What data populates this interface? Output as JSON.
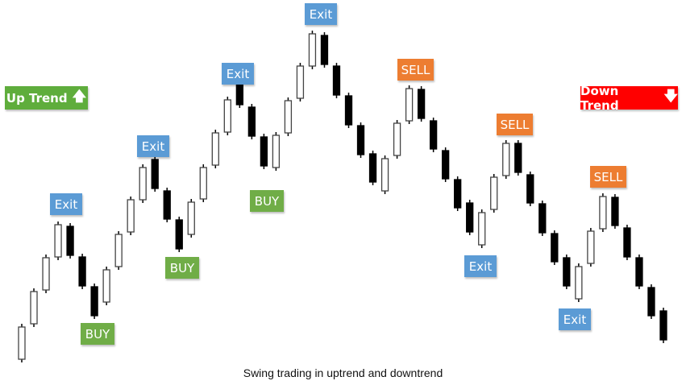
{
  "caption": "Swing trading in uptrend and downtrend",
  "trend_labels": {
    "up": {
      "label": "Up Trend",
      "icon": "arrow-up-icon",
      "color": "#5fad3c"
    },
    "down": {
      "label": "Down Trend",
      "icon": "arrow-down-icon",
      "color": "#ff0000"
    }
  },
  "signal_colors": {
    "Exit": "#5b9bd5",
    "BUY": "#70ad47",
    "SELL": "#ed7d31"
  },
  "signals": [
    "Exit",
    "BUY",
    "Exit",
    "BUY",
    "Exit",
    "BUY",
    "Exit",
    "SELL",
    "SELL",
    "Exit",
    "SELL",
    "Exit"
  ],
  "chart_data": {
    "type": "candlestick",
    "candles": [
      [
        14,
        54
      ],
      [
        58,
        98
      ],
      [
        100,
        140
      ],
      [
        141,
        181
      ],
      [
        179,
        143
      ],
      [
        141,
        105
      ],
      [
        104,
        68
      ],
      [
        85,
        125
      ],
      [
        129,
        169
      ],
      [
        172,
        212
      ],
      [
        212,
        252
      ],
      [
        262,
        226
      ],
      [
        223,
        188
      ],
      [
        187,
        151
      ],
      [
        169,
        209
      ],
      [
        213,
        252
      ],
      [
        255,
        295
      ],
      [
        296,
        336
      ],
      [
        366,
        330
      ],
      [
        327,
        291
      ],
      [
        290,
        254
      ],
      [
        252,
        292
      ],
      [
        295,
        335
      ],
      [
        338,
        378
      ],
      [
        378,
        418
      ],
      [
        416,
        380
      ],
      [
        378,
        342
      ],
      [
        341,
        305
      ],
      [
        304,
        268
      ],
      [
        269,
        234
      ],
      [
        223,
        263
      ],
      [
        267,
        307
      ],
      [
        310,
        350
      ],
      [
        349,
        313
      ],
      [
        310,
        275
      ],
      [
        273,
        238
      ],
      [
        237,
        202
      ],
      [
        208,
        172
      ],
      [
        156,
        196
      ],
      [
        200,
        240
      ],
      [
        242,
        282
      ],
      [
        282,
        246
      ],
      [
        243,
        208
      ],
      [
        207,
        171
      ],
      [
        170,
        135
      ],
      [
        140,
        105
      ],
      [
        89,
        129
      ],
      [
        133,
        173
      ],
      [
        176,
        216
      ],
      [
        215,
        180
      ],
      [
        177,
        141
      ],
      [
        140,
        105
      ],
      [
        103,
        68
      ],
      [
        74,
        38
      ]
    ]
  }
}
